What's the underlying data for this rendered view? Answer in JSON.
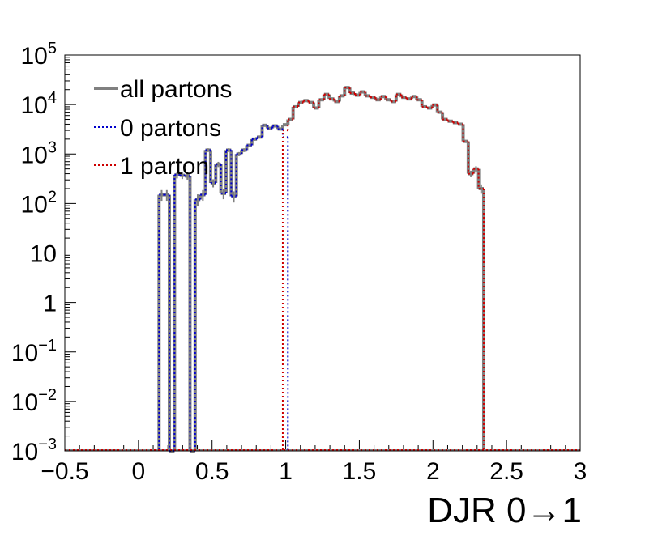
{
  "chart_data": {
    "type": "histogram",
    "xlabel": "DJR 0→1",
    "ylabel": "",
    "xlim": [
      -0.5,
      3.0
    ],
    "ylim": [
      0.001,
      100000
    ],
    "yscale": "log",
    "grid": false,
    "legend_placement": "top-left",
    "x_ticks": [
      {
        "value": -0.5,
        "label": "−0.5"
      },
      {
        "value": 0,
        "label": "0"
      },
      {
        "value": 0.5,
        "label": "0.5"
      },
      {
        "value": 1,
        "label": "1"
      },
      {
        "value": 1.5,
        "label": "1.5"
      },
      {
        "value": 2,
        "label": "2"
      },
      {
        "value": 2.5,
        "label": "2.5"
      },
      {
        "value": 3,
        "label": "3"
      }
    ],
    "y_ticks": [
      {
        "exp": -3,
        "base": "10",
        "sup": "−3"
      },
      {
        "exp": -2,
        "base": "10",
        "sup": "−2"
      },
      {
        "exp": -1,
        "base": "10",
        "sup": "−1"
      },
      {
        "exp": 0,
        "base": "1",
        "sup": ""
      },
      {
        "exp": 1,
        "base": "10",
        "sup": ""
      },
      {
        "exp": 2,
        "base": "10",
        "sup": "2"
      },
      {
        "exp": 3,
        "base": "10",
        "sup": "3"
      },
      {
        "exp": 4,
        "base": "10",
        "sup": "4"
      },
      {
        "exp": 5,
        "base": "10",
        "sup": "5"
      }
    ],
    "bin_width": 0.035,
    "series": [
      {
        "name": "all partons",
        "color": "#808080",
        "style": "solid",
        "bins": [
          [
            0.14,
            150
          ],
          [
            0.175,
            150
          ],
          [
            0.21,
            0.001
          ],
          [
            0.245,
            380
          ],
          [
            0.28,
            370
          ],
          [
            0.315,
            360
          ],
          [
            0.35,
            0.001
          ],
          [
            0.385,
            120
          ],
          [
            0.42,
            150
          ],
          [
            0.455,
            1200
          ],
          [
            0.49,
            260
          ],
          [
            0.525,
            620
          ],
          [
            0.56,
            160
          ],
          [
            0.595,
            1200
          ],
          [
            0.63,
            140
          ],
          [
            0.665,
            1000
          ],
          [
            0.7,
            1200
          ],
          [
            0.735,
            1500
          ],
          [
            0.77,
            2000
          ],
          [
            0.805,
            2200
          ],
          [
            0.84,
            3800
          ],
          [
            0.875,
            3300
          ],
          [
            0.91,
            3700
          ],
          [
            0.945,
            3200
          ],
          [
            0.98,
            3900
          ],
          [
            1.015,
            5000
          ],
          [
            1.05,
            9000
          ],
          [
            1.085,
            11000
          ],
          [
            1.12,
            12000
          ],
          [
            1.155,
            11000
          ],
          [
            1.19,
            8500
          ],
          [
            1.225,
            12500
          ],
          [
            1.26,
            16000
          ],
          [
            1.295,
            13000
          ],
          [
            1.33,
            11500
          ],
          [
            1.365,
            15000
          ],
          [
            1.4,
            22000
          ],
          [
            1.435,
            17000
          ],
          [
            1.47,
            15500
          ],
          [
            1.505,
            18000
          ],
          [
            1.54,
            15000
          ],
          [
            1.575,
            14000
          ],
          [
            1.61,
            12500
          ],
          [
            1.645,
            14500
          ],
          [
            1.68,
            12500
          ],
          [
            1.715,
            11500
          ],
          [
            1.75,
            16000
          ],
          [
            1.785,
            14000
          ],
          [
            1.82,
            13000
          ],
          [
            1.855,
            14500
          ],
          [
            1.89,
            12500
          ],
          [
            1.925,
            9000
          ],
          [
            1.96,
            8500
          ],
          [
            1.995,
            9800
          ],
          [
            2.03,
            7000
          ],
          [
            2.065,
            5000
          ],
          [
            2.1,
            4600
          ],
          [
            2.135,
            4300
          ],
          [
            2.17,
            4000
          ],
          [
            2.205,
            1800
          ],
          [
            2.24,
            400
          ],
          [
            2.275,
            500
          ],
          [
            2.31,
            200
          ]
        ]
      },
      {
        "name": "0 partons",
        "color": "#0000cc",
        "style": "dotted",
        "bins": [
          [
            0.14,
            150
          ],
          [
            0.175,
            150
          ],
          [
            0.21,
            0.001
          ],
          [
            0.245,
            380
          ],
          [
            0.28,
            370
          ],
          [
            0.315,
            360
          ],
          [
            0.35,
            0.001
          ],
          [
            0.385,
            120
          ],
          [
            0.42,
            150
          ],
          [
            0.455,
            1200
          ],
          [
            0.49,
            260
          ],
          [
            0.525,
            620
          ],
          [
            0.56,
            160
          ],
          [
            0.595,
            1200
          ],
          [
            0.63,
            140
          ],
          [
            0.665,
            1000
          ],
          [
            0.7,
            1200
          ],
          [
            0.735,
            1500
          ],
          [
            0.77,
            2000
          ],
          [
            0.805,
            2200
          ],
          [
            0.84,
            3800
          ],
          [
            0.875,
            3300
          ],
          [
            0.91,
            3700
          ],
          [
            0.945,
            3200
          ],
          [
            0.98,
            2200
          ]
        ]
      },
      {
        "name": "1 parton",
        "color": "#cc0000",
        "style": "dotted",
        "bins": [
          [
            0.98,
            3000
          ],
          [
            1.015,
            5000
          ],
          [
            1.05,
            9000
          ],
          [
            1.085,
            11000
          ],
          [
            1.12,
            12000
          ],
          [
            1.155,
            11000
          ],
          [
            1.19,
            8500
          ],
          [
            1.225,
            12500
          ],
          [
            1.26,
            16000
          ],
          [
            1.295,
            13000
          ],
          [
            1.33,
            11500
          ],
          [
            1.365,
            15000
          ],
          [
            1.4,
            22000
          ],
          [
            1.435,
            17000
          ],
          [
            1.47,
            15500
          ],
          [
            1.505,
            18000
          ],
          [
            1.54,
            15000
          ],
          [
            1.575,
            14000
          ],
          [
            1.61,
            12500
          ],
          [
            1.645,
            14500
          ],
          [
            1.68,
            12500
          ],
          [
            1.715,
            11500
          ],
          [
            1.75,
            16000
          ],
          [
            1.785,
            14000
          ],
          [
            1.82,
            13000
          ],
          [
            1.855,
            14500
          ],
          [
            1.89,
            12500
          ],
          [
            1.925,
            9000
          ],
          [
            1.96,
            8500
          ],
          [
            1.995,
            9800
          ],
          [
            2.03,
            7000
          ],
          [
            2.065,
            5000
          ],
          [
            2.1,
            4600
          ],
          [
            2.135,
            4300
          ],
          [
            2.17,
            4000
          ],
          [
            2.205,
            1800
          ],
          [
            2.24,
            400
          ],
          [
            2.275,
            500
          ],
          [
            2.31,
            200
          ]
        ]
      }
    ]
  },
  "legend": {
    "items": [
      {
        "label": "all partons",
        "color": "#808080",
        "style": "solid"
      },
      {
        "label": "0 partons",
        "color": "#0000cc",
        "style": "dotted"
      },
      {
        "label": "1 parton",
        "color": "#cc0000",
        "style": "dotted"
      }
    ]
  }
}
